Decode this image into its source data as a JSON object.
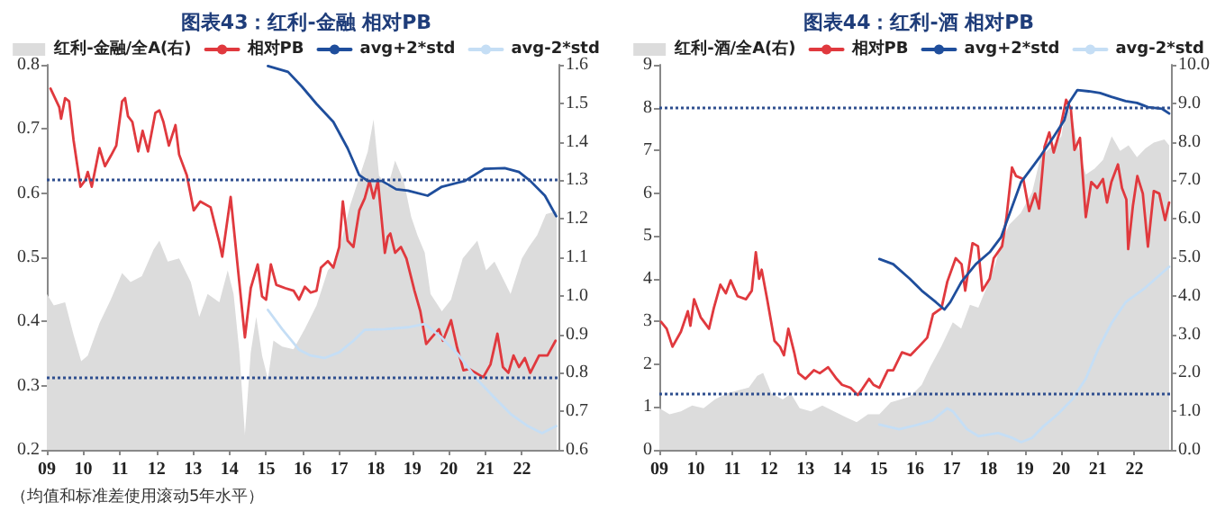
{
  "chart_data": [
    {
      "type": "line",
      "title": "图表43：红利-金融 相对PB",
      "legend": "top",
      "marker": "none",
      "line_style": "solid",
      "xlim": [
        2009,
        2023
      ],
      "xticks": [
        {
          "value": 2009,
          "label": "09"
        },
        {
          "value": 2010,
          "label": "10"
        },
        {
          "value": 2011,
          "label": "11"
        },
        {
          "value": 2012,
          "label": "12"
        },
        {
          "value": 2013,
          "label": "13"
        },
        {
          "value": 2014,
          "label": "14"
        },
        {
          "value": 2015,
          "label": "15"
        },
        {
          "value": 2016,
          "label": "16"
        },
        {
          "value": 2017,
          "label": "17"
        },
        {
          "value": 2018,
          "label": "18"
        },
        {
          "value": 2019,
          "label": "19"
        },
        {
          "value": 2020,
          "label": "20"
        },
        {
          "value": 2021,
          "label": "21"
        },
        {
          "value": 2022,
          "label": "22"
        }
      ],
      "ylim": [
        0.2,
        0.8
      ],
      "yticks": [
        0.2,
        0.3,
        0.4,
        0.5,
        0.6,
        0.7,
        0.8
      ],
      "y2lim": [
        0.6,
        1.6
      ],
      "y2ticks": [
        0.6,
        0.7,
        0.8,
        0.9,
        {
          "value": 1,
          "label": "1.0"
        },
        1.1,
        1.2,
        1.3,
        1.4,
        1.5,
        1.6
      ],
      "ref_lines": [
        {
          "axis": "y",
          "value": 0.617,
          "color": "#2f4f8f",
          "line_style": "dotted"
        },
        {
          "axis": "y2",
          "value": 0.79,
          "color": "#2f4f8f",
          "line_style": "dotted"
        }
      ],
      "annotations": [
        "（均值和标准差使用滚动5年水平）"
      ],
      "series": [
        {
          "name": "红利-金融/全A(右)",
          "type": "area",
          "axis": "y2",
          "color": "#dcdcdc",
          "x": [
            2009,
            2009.19,
            2009.5,
            2009.73,
            2009.94,
            2010.12,
            2010.44,
            2010.75,
            2011.06,
            2011.29,
            2011.6,
            2011.92,
            2012.08,
            2012.31,
            2012.62,
            2012.94,
            2013.17,
            2013.4,
            2013.72,
            2013.95,
            2014.11,
            2014.27,
            2014.42,
            2014.58,
            2014.73,
            2014.89,
            2015.05,
            2015.2,
            2015.44,
            2015.75,
            2016.06,
            2016.38,
            2016.69,
            2016.92,
            2017.3,
            2017.78,
            2017.94,
            2018.09,
            2018.33,
            2018.53,
            2018.77,
            2018.97,
            2019.14,
            2019.34,
            2019.5,
            2019.81,
            2020.06,
            2020.38,
            2020.78,
            2021.02,
            2021.25,
            2021.69,
            2022,
            2022.19,
            2022.42,
            2022.66,
            2022.95
          ],
          "values": [
            1.005,
            0.975,
            0.983,
            0.899,
            0.83,
            0.845,
            0.929,
            0.99,
            1.059,
            1.036,
            1.051,
            1.12,
            1.143,
            1.089,
            1.097,
            1.036,
            0.945,
            1.005,
            0.983,
            1.066,
            1.005,
            0.853,
            0.64,
            0.853,
            0.945,
            0.845,
            0.784,
            0.884,
            0.868,
            0.861,
            0.914,
            0.975,
            1.066,
            1.089,
            1.235,
            1.374,
            1.458,
            1.312,
            1.282,
            1.351,
            1.297,
            1.205,
            1.158,
            1.112,
            1.005,
            0.96,
            0.99,
            1.097,
            1.143,
            1.066,
            1.089,
            1.005,
            1.097,
            1.127,
            1.158,
            1.212,
            1.22
          ]
        },
        {
          "name": "相对PB",
          "type": "line",
          "axis": "y",
          "color": "#e0393e",
          "x": [
            2009.1,
            2009.34,
            2009.39,
            2009.5,
            2009.61,
            2009.73,
            2009.92,
            2010.05,
            2010.12,
            2010.23,
            2010.44,
            2010.59,
            2010.75,
            2010.9,
            2011.06,
            2011.14,
            2011.22,
            2011.34,
            2011.5,
            2011.62,
            2011.77,
            2011.97,
            2012.08,
            2012.19,
            2012.34,
            2012.52,
            2012.62,
            2012.83,
            2013.02,
            2013.2,
            2013.48,
            2013.72,
            2013.8,
            2014.03,
            2014.42,
            2014.58,
            2014.77,
            2014.89,
            2015,
            2015.13,
            2015.28,
            2015.52,
            2015.75,
            2015.9,
            2016.06,
            2016.22,
            2016.38,
            2016.5,
            2016.69,
            2016.84,
            2017,
            2017.1,
            2017.23,
            2017.39,
            2017.55,
            2017.7,
            2017.83,
            2017.94,
            2018.06,
            2018.25,
            2018.33,
            2018.4,
            2018.53,
            2018.69,
            2018.84,
            2019.06,
            2019.22,
            2019.38,
            2019.53,
            2019.73,
            2019.84,
            2020.06,
            2020.22,
            2020.4,
            2020.56,
            2020.94,
            2021.14,
            2021.33,
            2021.48,
            2021.63,
            2021.77,
            2021.92,
            2022.08,
            2022.23,
            2022.47,
            2022.7,
            2022.92
          ],
          "values": [
            0.763,
            0.734,
            0.716,
            0.748,
            0.743,
            0.683,
            0.61,
            0.62,
            0.633,
            0.61,
            0.67,
            0.642,
            0.658,
            0.674,
            0.743,
            0.748,
            0.72,
            0.711,
            0.665,
            0.697,
            0.665,
            0.725,
            0.729,
            0.711,
            0.674,
            0.706,
            0.66,
            0.628,
            0.573,
            0.587,
            0.578,
            0.523,
            0.501,
            0.594,
            0.375,
            0.452,
            0.489,
            0.439,
            0.434,
            0.489,
            0.457,
            0.452,
            0.448,
            0.434,
            0.454,
            0.445,
            0.448,
            0.484,
            0.494,
            0.484,
            0.516,
            0.587,
            0.526,
            0.516,
            0.573,
            0.592,
            0.619,
            0.592,
            0.619,
            0.507,
            0.532,
            0.537,
            0.507,
            0.516,
            0.498,
            0.448,
            0.416,
            0.365,
            0.375,
            0.388,
            0.37,
            0.402,
            0.361,
            0.324,
            0.326,
            0.313,
            0.333,
            0.381,
            0.329,
            0.32,
            0.347,
            0.329,
            0.343,
            0.32,
            0.347,
            0.347,
            0.37
          ]
        },
        {
          "name": "avg+2*std",
          "type": "line",
          "axis": "y",
          "color": "#1f4e9c",
          "x": [
            2015.05,
            2015.6,
            2015.98,
            2016.38,
            2016.84,
            2017.23,
            2017.55,
            2017.78,
            2018.17,
            2018.56,
            2018.88,
            2019.42,
            2019.81,
            2020.44,
            2020.98,
            2021.53,
            2021.92,
            2022.23,
            2022.63,
            2022.94
          ],
          "values": [
            0.798,
            0.789,
            0.766,
            0.739,
            0.711,
            0.67,
            0.628,
            0.619,
            0.619,
            0.606,
            0.604,
            0.596,
            0.61,
            0.619,
            0.638,
            0.639,
            0.633,
            0.619,
            0.596,
            0.564
          ]
        },
        {
          "name": "avg-2*std",
          "type": "line",
          "axis": "y",
          "color": "#c5def5",
          "x": [
            2015.05,
            2015.44,
            2015.9,
            2016.22,
            2016.6,
            2017,
            2017.39,
            2017.7,
            2018.25,
            2018.88,
            2019.34,
            2019.8,
            2020.28,
            2020.75,
            2021.22,
            2021.69,
            2022.16,
            2022.55,
            2022.94
          ],
          "values": [
            0.418,
            0.388,
            0.356,
            0.347,
            0.343,
            0.352,
            0.37,
            0.387,
            0.388,
            0.391,
            0.396,
            0.375,
            0.347,
            0.311,
            0.283,
            0.256,
            0.237,
            0.226,
            0.237
          ]
        }
      ]
    },
    {
      "type": "line",
      "title": "图表44：红利-酒 相对PB",
      "legend": "top",
      "marker": "none",
      "line_style": "solid",
      "xlim": [
        2009,
        2023
      ],
      "xticks": [
        {
          "value": 2009,
          "label": "09"
        },
        {
          "value": 2010,
          "label": "10"
        },
        {
          "value": 2011,
          "label": "11"
        },
        {
          "value": 2012,
          "label": "12"
        },
        {
          "value": 2013,
          "label": "13"
        },
        {
          "value": 2014,
          "label": "14"
        },
        {
          "value": 2015,
          "label": "15"
        },
        {
          "value": 2016,
          "label": "16"
        },
        {
          "value": 2017,
          "label": "17"
        },
        {
          "value": 2018,
          "label": "18"
        },
        {
          "value": 2019,
          "label": "19"
        },
        {
          "value": 2020,
          "label": "20"
        },
        {
          "value": 2021,
          "label": "21"
        },
        {
          "value": 2022,
          "label": "22"
        }
      ],
      "ylim": [
        0,
        9
      ],
      "yticks": [
        0,
        1,
        2,
        3,
        4,
        5,
        6,
        7,
        8,
        9
      ],
      "y2lim": [
        0,
        10
      ],
      "y2ticks": [
        {
          "value": 0,
          "label": "0.0"
        },
        {
          "value": 1,
          "label": "1.0"
        },
        {
          "value": 2,
          "label": "2.0"
        },
        {
          "value": 3,
          "label": "3.0"
        },
        {
          "value": 4,
          "label": "4.0"
        },
        {
          "value": 5,
          "label": "5.0"
        },
        {
          "value": 6,
          "label": "6.0"
        },
        {
          "value": 7,
          "label": "7.0"
        },
        {
          "value": 8,
          "label": "8.0"
        },
        {
          "value": 9,
          "label": "9.0"
        },
        {
          "value": 10,
          "label": "10.0"
        }
      ],
      "ref_lines": [
        {
          "axis": "y",
          "value": 8,
          "color": "#2f4f8f",
          "line_style": "dotted"
        },
        {
          "axis": "y",
          "value": 1.31,
          "color": "#2f4f8f",
          "line_style": "dotted"
        }
      ],
      "series": [
        {
          "name": "红利-酒/全A(右)",
          "type": "area",
          "axis": "y2",
          "color": "#dcdcdc",
          "x": [
            2009,
            2009.28,
            2009.59,
            2009.9,
            2010.21,
            2010.52,
            2010.83,
            2011.14,
            2011.45,
            2011.68,
            2011.84,
            2012.07,
            2012.38,
            2012.6,
            2012.84,
            2013.15,
            2013.46,
            2013.78,
            2014.09,
            2014.4,
            2014.71,
            2015.02,
            2015.33,
            2015.85,
            2016.18,
            2016.41,
            2016.72,
            2017.03,
            2017.26,
            2017.5,
            2017.73,
            2017.96,
            2018.2,
            2018.35,
            2018.58,
            2018.89,
            2019.2,
            2019.43,
            2019.77,
            2020,
            2020.13,
            2020.29,
            2020.44,
            2020.67,
            2020.91,
            2021.14,
            2021.38,
            2021.61,
            2021.84,
            2022.07,
            2022.3,
            2022.53,
            2022.82,
            2022.95
          ],
          "values": [
            1.08,
            0.92,
            1,
            1.15,
            1.08,
            1.31,
            1.46,
            1.54,
            1.62,
            1.92,
            2,
            1.46,
            1.31,
            1.46,
            1.08,
            1,
            1.15,
            1,
            0.85,
            0.72,
            0.92,
            0.92,
            1.23,
            1.38,
            1.69,
            2.15,
            2.69,
            3.31,
            3.15,
            3.77,
            3.69,
            4.23,
            4.85,
            5.38,
            5.85,
            6.15,
            6.69,
            7.6,
            7.91,
            8.14,
            8.9,
            8.67,
            7.91,
            7.15,
            7.3,
            7.53,
            8.14,
            7.76,
            7.91,
            7.6,
            7.83,
            7.98,
            8.06,
            7.91
          ]
        },
        {
          "name": "相对PB",
          "type": "line",
          "axis": "y",
          "color": "#e0393e",
          "x": [
            2009.05,
            2009.2,
            2009.36,
            2009.59,
            2009.78,
            2009.85,
            2009.95,
            2010.13,
            2010.36,
            2010.49,
            2010.67,
            2010.82,
            2010.95,
            2011.14,
            2011.37,
            2011.53,
            2011.64,
            2011.73,
            2011.8,
            2011.95,
            2012.15,
            2012.3,
            2012.41,
            2012.53,
            2012.69,
            2012.81,
            2013,
            2013.23,
            2013.39,
            2013.62,
            2013.85,
            2014,
            2014.23,
            2014.43,
            2014.55,
            2014.74,
            2014.86,
            2015.02,
            2015.25,
            2015.4,
            2015.64,
            2015.87,
            2016.1,
            2016.33,
            2016.49,
            2016.72,
            2016.88,
            2017.11,
            2017.27,
            2017.37,
            2017.57,
            2017.72,
            2017.84,
            2018.04,
            2018.15,
            2018.38,
            2018.5,
            2018.65,
            2018.76,
            2018.96,
            2019.12,
            2019.28,
            2019.39,
            2019.54,
            2019.67,
            2019.79,
            2019.95,
            2020.13,
            2020.26,
            2020.36,
            2020.51,
            2020.67,
            2020.82,
            2020.98,
            2021.14,
            2021.25,
            2021.37,
            2021.55,
            2021.66,
            2021.78,
            2021.83,
            2021.96,
            2022.08,
            2022.23,
            2022.37,
            2022.53,
            2022.68,
            2022.84,
            2022.95
          ],
          "values": [
            2.99,
            2.83,
            2.41,
            2.76,
            3.24,
            2.9,
            3.52,
            3.1,
            2.83,
            3.31,
            3.86,
            3.66,
            3.96,
            3.59,
            3.52,
            3.72,
            4.62,
            4,
            4.21,
            3.52,
            2.55,
            2.41,
            2.21,
            2.83,
            2.28,
            1.79,
            1.66,
            1.86,
            1.79,
            1.93,
            1.66,
            1.52,
            1.45,
            1.28,
            1.42,
            1.66,
            1.52,
            1.45,
            1.86,
            1.86,
            2.28,
            2.21,
            2.41,
            2.62,
            3.17,
            3.31,
            3.93,
            4.48,
            4.34,
            3.72,
            4.83,
            4.76,
            3.72,
            4,
            4.48,
            4.76,
            5.44,
            6.6,
            6.4,
            6.33,
            5.58,
            5.99,
            5.64,
            7.08,
            7.42,
            6.95,
            7.42,
            8.18,
            7.97,
            7.01,
            7.29,
            5.44,
            6.26,
            6.12,
            6.33,
            5.78,
            6.26,
            6.67,
            6.12,
            5.85,
            4.69,
            5.71,
            6.4,
            5.99,
            4.75,
            6.05,
            5.99,
            5.37,
            5.78
          ]
        },
        {
          "name": "avg+2*std",
          "type": "line",
          "axis": "y",
          "color": "#1f4e9c",
          "x": [
            2015.02,
            2015.4,
            2015.85,
            2016.18,
            2016.57,
            2016.8,
            2016.96,
            2017.27,
            2017.66,
            2018.04,
            2018.35,
            2018.58,
            2018.9,
            2019.2,
            2019.44,
            2019.77,
            2020.08,
            2020.21,
            2020.44,
            2020.75,
            2021.06,
            2021.37,
            2021.76,
            2022.07,
            2022.37,
            2022.76,
            2022.95
          ],
          "values": [
            4.46,
            4.34,
            4,
            3.72,
            3.45,
            3.28,
            3.45,
            3.93,
            4.34,
            4.62,
            4.97,
            5.51,
            6.26,
            6.6,
            6.88,
            7.29,
            7.7,
            8.11,
            8.41,
            8.38,
            8.34,
            8.25,
            8.15,
            8.11,
            8.01,
            7.97,
            7.86
          ]
        },
        {
          "name": "avg-2*std",
          "type": "line",
          "axis": "y",
          "color": "#c5def5",
          "x": [
            2015.02,
            2015.56,
            2016.09,
            2016.48,
            2016.88,
            2017.03,
            2017.42,
            2017.73,
            2018.27,
            2018.66,
            2018.9,
            2019.2,
            2019.51,
            2019.9,
            2020.29,
            2020.67,
            2021,
            2021.38,
            2021.76,
            2022.3,
            2022.95
          ],
          "values": [
            0.59,
            0.48,
            0.59,
            0.69,
            0.97,
            0.9,
            0.48,
            0.32,
            0.39,
            0.28,
            0.18,
            0.28,
            0.55,
            0.83,
            1.17,
            1.66,
            2.34,
            2.97,
            3.45,
            3.79,
            4.28
          ]
        }
      ]
    }
  ]
}
